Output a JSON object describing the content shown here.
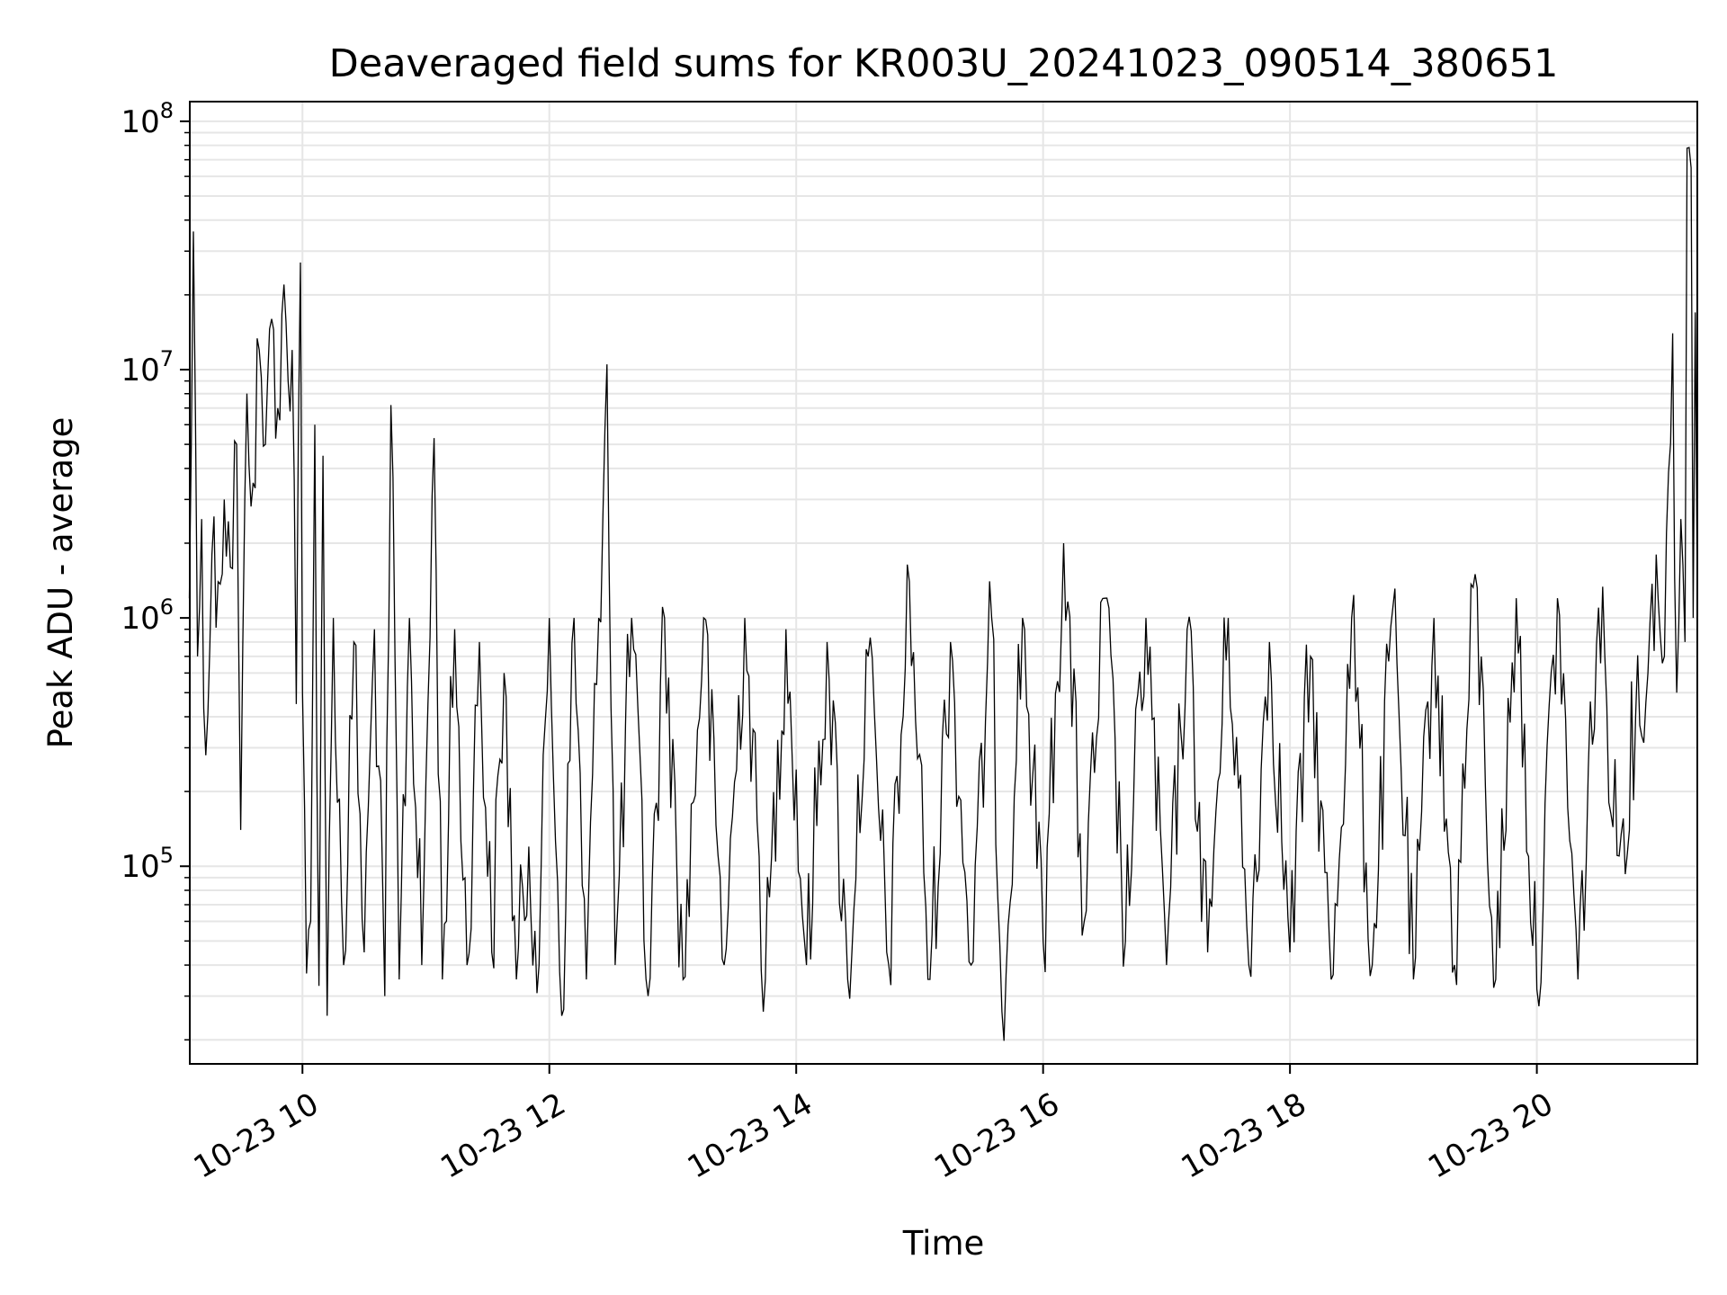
{
  "chart_data": {
    "type": "line",
    "title": "Deaveraged field sums for KR003U_20241023_090514_380651",
    "xlabel": "Time",
    "ylabel": "Peak ADU - average",
    "y_scale": "log",
    "ylim": [
      16000,
      120000000
    ],
    "xlim": [
      "2024-10-23 09:05:14",
      "2024-10-23 21:18:00"
    ],
    "grid": true,
    "x_ticks": [
      {
        "value": "2024-10-23 10:00",
        "label": "10-23 10"
      },
      {
        "value": "2024-10-23 12:00",
        "label": "10-23 12"
      },
      {
        "value": "2024-10-23 14:00",
        "label": "10-23 14"
      },
      {
        "value": "2024-10-23 16:00",
        "label": "10-23 16"
      },
      {
        "value": "2024-10-23 18:00",
        "label": "10-23 18"
      },
      {
        "value": "2024-10-23 20:00",
        "label": "10-23 20"
      }
    ],
    "y_ticks": [
      {
        "value": 100000,
        "base": "10",
        "exp": "5"
      },
      {
        "value": 1000000,
        "base": "10",
        "exp": "6"
      },
      {
        "value": 10000000,
        "base": "10",
        "exp": "7"
      },
      {
        "value": 100000000,
        "base": "10",
        "exp": "8"
      }
    ],
    "series": [
      {
        "color": "#000000",
        "points": [
          [
            "2024-10-23 09:05",
            1200000
          ],
          [
            "2024-10-23 09:07",
            36000000
          ],
          [
            "2024-10-23 09:09",
            700000
          ],
          [
            "2024-10-23 09:11",
            2500000
          ],
          [
            "2024-10-23 09:13",
            280000
          ],
          [
            "2024-10-23 09:16",
            1800000
          ],
          [
            "2024-10-23 09:19",
            1400000
          ],
          [
            "2024-10-23 09:22",
            3000000
          ],
          [
            "2024-10-23 09:25",
            1600000
          ],
          [
            "2024-10-23 09:28",
            5000000
          ],
          [
            "2024-10-23 09:30",
            140000
          ],
          [
            "2024-10-23 09:33",
            8000000
          ],
          [
            "2024-10-23 09:36",
            3500000
          ],
          [
            "2024-10-23 09:39",
            12000000
          ],
          [
            "2024-10-23 09:42",
            5000000
          ],
          [
            "2024-10-23 09:45",
            16000000
          ],
          [
            "2024-10-23 09:48",
            7000000
          ],
          [
            "2024-10-23 09:51",
            22000000
          ],
          [
            "2024-10-23 09:53",
            9000000
          ],
          [
            "2024-10-23 09:55",
            12000000
          ],
          [
            "2024-10-23 09:57",
            450000
          ],
          [
            "2024-10-23 09:59",
            27000000
          ],
          [
            "2024-10-23 10:00",
            500000
          ],
          [
            "2024-10-23 10:02",
            37000
          ],
          [
            "2024-10-23 10:04",
            60000
          ],
          [
            "2024-10-23 10:06",
            6000000
          ],
          [
            "2024-10-23 10:08",
            33000
          ],
          [
            "2024-10-23 10:10",
            4500000
          ],
          [
            "2024-10-23 10:12",
            25000
          ],
          [
            "2024-10-23 10:15",
            1000000
          ],
          [
            "2024-10-23 10:20",
            40000
          ],
          [
            "2024-10-23 10:25",
            800000
          ],
          [
            "2024-10-23 10:30",
            45000
          ],
          [
            "2024-10-23 10:35",
            900000
          ],
          [
            "2024-10-23 10:40",
            30000
          ],
          [
            "2024-10-23 10:43",
            7200000
          ],
          [
            "2024-10-23 10:47",
            35000
          ],
          [
            "2024-10-23 10:52",
            1000000
          ],
          [
            "2024-10-23 10:58",
            40000
          ],
          [
            "2024-10-23 11:04",
            5300000
          ],
          [
            "2024-10-23 11:08",
            35000
          ],
          [
            "2024-10-23 11:14",
            900000
          ],
          [
            "2024-10-23 11:20",
            40000
          ],
          [
            "2024-10-23 11:26",
            800000
          ],
          [
            "2024-10-23 11:32",
            45000
          ],
          [
            "2024-10-23 11:38",
            600000
          ],
          [
            "2024-10-23 11:44",
            35000
          ],
          [
            "2024-10-23 11:50",
            120000
          ],
          [
            "2024-10-23 11:55",
            40000
          ],
          [
            "2024-10-23 12:00",
            1000000
          ],
          [
            "2024-10-23 12:06",
            25000
          ],
          [
            "2024-10-23 12:12",
            1000000
          ],
          [
            "2024-10-23 12:18",
            35000
          ],
          [
            "2024-10-23 12:24",
            1000000
          ],
          [
            "2024-10-23 12:28",
            10500000
          ],
          [
            "2024-10-23 12:32",
            40000
          ],
          [
            "2024-10-23 12:40",
            1000000
          ],
          [
            "2024-10-23 12:48",
            30000
          ],
          [
            "2024-10-23 12:56",
            1000000
          ],
          [
            "2024-10-23 13:05",
            35000
          ],
          [
            "2024-10-23 13:15",
            1000000
          ],
          [
            "2024-10-23 13:25",
            40000
          ],
          [
            "2024-10-23 13:35",
            1000000
          ],
          [
            "2024-10-23 13:45",
            35000
          ],
          [
            "2024-10-23 13:55",
            900000
          ],
          [
            "2024-10-23 14:05",
            40000
          ],
          [
            "2024-10-23 14:15",
            800000
          ],
          [
            "2024-10-23 14:25",
            35000
          ],
          [
            "2024-10-23 14:35",
            700000
          ],
          [
            "2024-10-23 14:45",
            40000
          ],
          [
            "2024-10-23 14:55",
            1400000
          ],
          [
            "2024-10-23 15:05",
            35000
          ],
          [
            "2024-10-23 15:15",
            800000
          ],
          [
            "2024-10-23 15:25",
            40000
          ],
          [
            "2024-10-23 15:35",
            1000000
          ],
          [
            "2024-10-23 15:40",
            26000
          ],
          [
            "2024-10-23 15:50",
            1000000
          ],
          [
            "2024-10-23 16:00",
            50000
          ],
          [
            "2024-10-23 16:10",
            2000000
          ],
          [
            "2024-10-23 16:20",
            60000
          ],
          [
            "2024-10-23 16:30",
            1200000
          ],
          [
            "2024-10-23 16:40",
            50000
          ],
          [
            "2024-10-23 16:50",
            1000000
          ],
          [
            "2024-10-23 17:00",
            40000
          ],
          [
            "2024-10-23 17:10",
            900000
          ],
          [
            "2024-10-23 17:20",
            45000
          ],
          [
            "2024-10-23 17:30",
            1000000
          ],
          [
            "2024-10-23 17:40",
            40000
          ],
          [
            "2024-10-23 17:50",
            800000
          ],
          [
            "2024-10-23 18:00",
            45000
          ],
          [
            "2024-10-23 18:10",
            700000
          ],
          [
            "2024-10-23 18:20",
            35000
          ],
          [
            "2024-10-23 18:30",
            1000000
          ],
          [
            "2024-10-23 18:40",
            40000
          ],
          [
            "2024-10-23 18:50",
            1100000
          ],
          [
            "2024-10-23 19:00",
            35000
          ],
          [
            "2024-10-23 19:10",
            1000000
          ],
          [
            "2024-10-23 19:20",
            40000
          ],
          [
            "2024-10-23 19:30",
            1500000
          ],
          [
            "2024-10-23 19:40",
            35000
          ],
          [
            "2024-10-23 19:50",
            1200000
          ],
          [
            "2024-10-23 20:00",
            32000
          ],
          [
            "2024-10-23 20:10",
            1200000
          ],
          [
            "2024-10-23 20:20",
            35000
          ],
          [
            "2024-10-23 20:30",
            1100000
          ],
          [
            "2024-10-23 20:40",
            110000
          ],
          [
            "2024-10-23 20:48",
            400000
          ],
          [
            "2024-10-23 20:54",
            600000
          ],
          [
            "2024-10-23 20:58",
            1800000
          ],
          [
            "2024-10-23 21:02",
            700000
          ],
          [
            "2024-10-23 21:06",
            14000000
          ],
          [
            "2024-10-23 21:08",
            500000
          ],
          [
            "2024-10-23 21:10",
            2500000
          ],
          [
            "2024-10-23 21:12",
            800000
          ],
          [
            "2024-10-23 21:13",
            78000000
          ],
          [
            "2024-10-23 21:15",
            65000000
          ],
          [
            "2024-10-23 21:16",
            1000000
          ],
          [
            "2024-10-23 21:17",
            17000000
          ],
          [
            "2024-10-23 21:18",
            1200000
          ]
        ]
      }
    ]
  }
}
